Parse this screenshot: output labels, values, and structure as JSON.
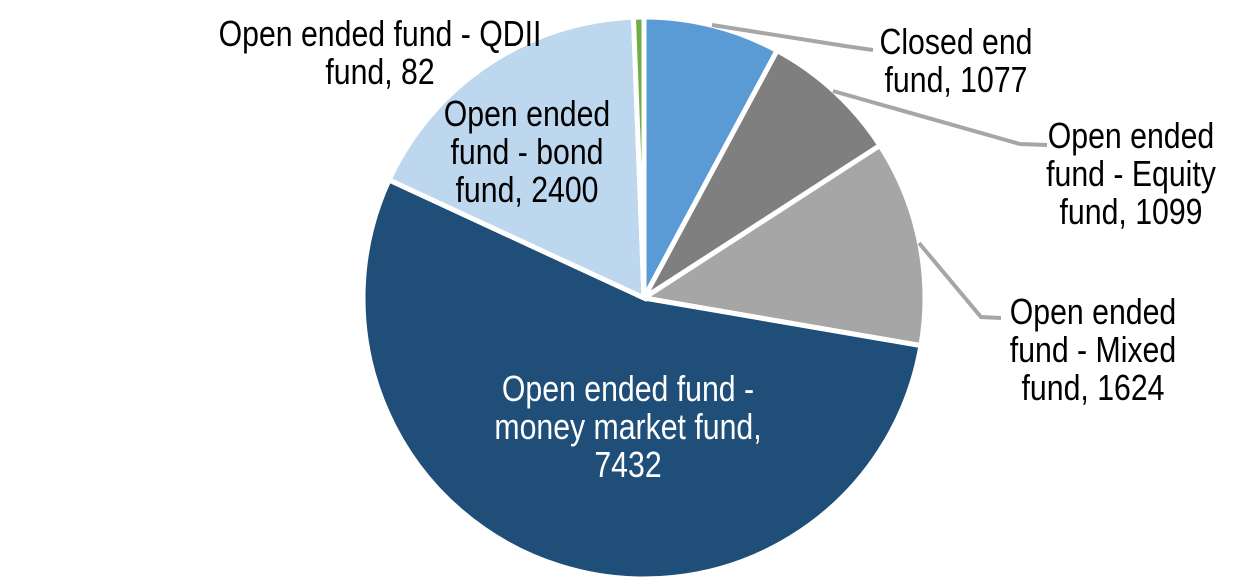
{
  "chart_data": {
    "type": "pie",
    "title": "",
    "start_angle_deg": 0,
    "direction": "clockwise",
    "slice_border_color": "#FFFFFF",
    "leader_line_color": "#A6A6A6",
    "background_color": "#FFFFFF",
    "slices": [
      {
        "name": "Closed end fund",
        "value": 1077,
        "color": "#5B9BD5",
        "label": "Closed end fund, 1077",
        "label_lines": [
          "Closed end",
          "fund, 1077"
        ],
        "label_color": "#000000",
        "label_placement": "outside-right",
        "has_leader_line": true
      },
      {
        "name": "Open ended fund - Equity fund",
        "value": 1099,
        "color": "#7F7F7F",
        "label": "Open ended fund - Equity fund, 1099",
        "label_lines": [
          "Open ended",
          "fund - Equity",
          "fund, 1099"
        ],
        "label_color": "#000000",
        "label_placement": "outside-right",
        "has_leader_line": true
      },
      {
        "name": "Open ended fund - Mixed fund",
        "value": 1624,
        "color": "#A6A6A6",
        "label": "Open ended fund - Mixed fund, 1624",
        "label_lines": [
          "Open ended",
          "fund - Mixed",
          "fund, 1624"
        ],
        "label_color": "#000000",
        "label_placement": "outside-right",
        "has_leader_line": true
      },
      {
        "name": "Open ended fund - money market fund",
        "value": 7432,
        "color": "#1F4E79",
        "label": "Open ended fund - money market fund, 7432",
        "label_lines": [
          "Open ended fund -",
          "money market fund,",
          "7432"
        ],
        "label_color": "#FFFFFF",
        "label_placement": "inside",
        "has_leader_line": false
      },
      {
        "name": "Open ended fund - bond fund",
        "value": 2400,
        "color": "#BDD7EE",
        "label": "Open ended fund - bond fund, 2400",
        "label_lines": [
          "Open ended",
          "fund - bond",
          "fund, 2400"
        ],
        "label_color": "#000000",
        "label_placement": "on-slice",
        "has_leader_line": false
      },
      {
        "name": "Open ended fund - QDII fund",
        "value": 82,
        "color": "#70AD47",
        "label": "Open ended fund - QDII fund, 82",
        "label_lines": [
          "Open ended fund - QDII",
          "fund, 82"
        ],
        "label_color": "#000000",
        "label_placement": "outside-left",
        "has_leader_line": false
      }
    ]
  }
}
